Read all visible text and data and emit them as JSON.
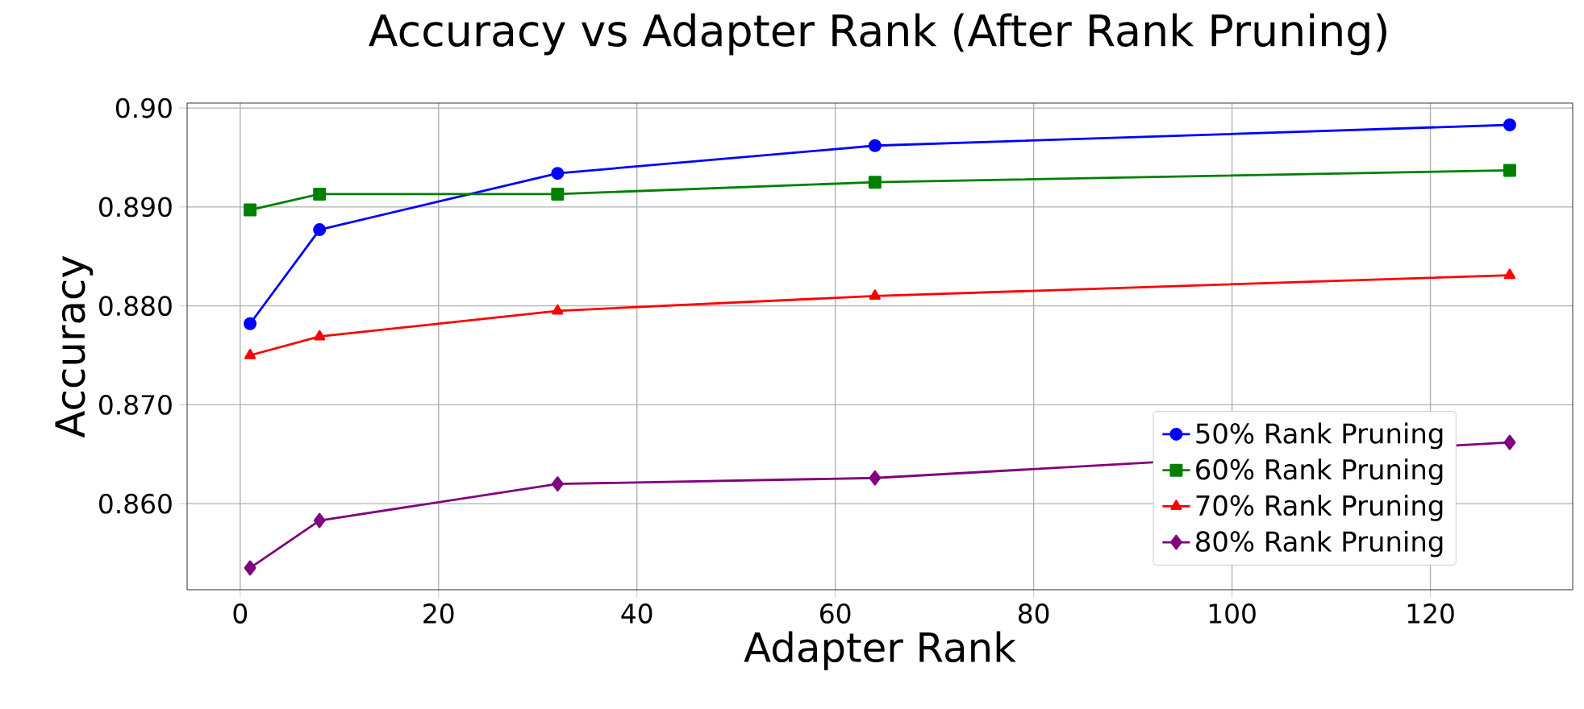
{
  "chart_data": {
    "type": "line",
    "title": "Accuracy vs Adapter Rank (After Rank Pruning)",
    "xlabel": "Adapter Rank",
    "ylabel": "Accuracy",
    "x": [
      1,
      8,
      32,
      64,
      128
    ],
    "series": [
      {
        "name": "50% Rank Pruning",
        "color": "#0000ff",
        "marker": "circle",
        "values": [
          0.8782,
          0.8877,
          0.8934,
          0.8962,
          0.8983
        ]
      },
      {
        "name": "60% Rank Pruning",
        "color": "#008000",
        "marker": "square",
        "values": [
          0.8897,
          0.8913,
          0.8913,
          0.8925,
          0.8937
        ]
      },
      {
        "name": "70% Rank Pruning",
        "color": "#ff0000",
        "marker": "triangle",
        "values": [
          0.875,
          0.8769,
          0.8795,
          0.881,
          0.8831
        ]
      },
      {
        "name": "80% Rank Pruning",
        "color": "#800080",
        "marker": "diamond",
        "values": [
          0.8535,
          0.8583,
          0.862,
          0.8626,
          0.8662
        ]
      }
    ],
    "xlim": [
      -5.35,
      134.35
    ],
    "ylim": [
      0.8513,
      0.9005
    ],
    "xticks": [
      0,
      20,
      40,
      60,
      80,
      100,
      120
    ],
    "yticks": [
      {
        "value": 0.86,
        "label": "0.860"
      },
      {
        "value": 0.87,
        "label": "0.870"
      },
      {
        "value": 0.88,
        "label": "0.880"
      },
      {
        "value": 0.89,
        "label": "0.890"
      },
      {
        "value": 0.9,
        "label": "0.90"
      }
    ],
    "grid": true,
    "legend": "bottom right",
    "line_style": "solid"
  }
}
